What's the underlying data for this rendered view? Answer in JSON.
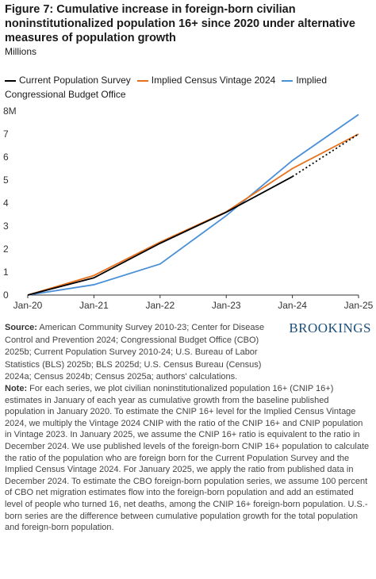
{
  "chart_data": {
    "type": "line",
    "title": "Figure 7: Cumulative increase in foreign-born civilian noninstitutionalized population 16+ since 2020 under alternative measures of population growth",
    "subtitle": "Millions",
    "categories": [
      "Jan-20",
      "Jan-21",
      "Jan-22",
      "Jan-23",
      "Jan-24",
      "Jan-25"
    ],
    "series": [
      {
        "name": "Current Population Survey",
        "color": "#000000",
        "values": [
          0,
          0.75,
          2.25,
          3.6,
          5.15,
          7.0
        ],
        "dotted_from_index": 4
      },
      {
        "name": "Implied Census Vintage 2024",
        "color": "#e8701a",
        "values": [
          0,
          0.85,
          2.3,
          3.62,
          5.5,
          7.0
        ]
      },
      {
        "name": "Implied Congressional Budget Office",
        "color": "#4a90d9",
        "values": [
          0,
          0.45,
          1.35,
          3.45,
          5.85,
          7.85
        ]
      }
    ],
    "ylim": [
      0,
      8
    ],
    "yticks": [
      0,
      1,
      2,
      3,
      4,
      5,
      6,
      7,
      {
        "value": 8,
        "label": "8M"
      }
    ],
    "grid": false
  },
  "source": {
    "label": "Source:",
    "text": "American Community Survey 2010-23; Center for Disease Control and Prevention 2024; Congressional Budget Office (CBO) 2025b; Current Population Survey 2010-24; U.S. Bureau of Labor Statistics (BLS) 2025b; BLS 2025d; U.S. Census Bureau (Census) 2024a; Census 2024b; Census 2025a; authors' calculations."
  },
  "brand": "BROOKINGS",
  "note": {
    "label": "Note:",
    "text": "For each series, we plot civilian noninstitutionalized population 16+ (CNIP 16+) estimates in January of each year as cumulative growth from the baseline published population in January 2020. To estimate the CNIP 16+ level for the Implied Census Vintage 2024, we multiply the Vintage 2024 CNIP with the ratio of the CNIP 16+ and CNIP population in Vintage 2023. In January 2025, we assume the CNIP 16+ ratio is equivalent to the ratio in December 2024. We use published levels of the foreign-born CNIP 16+ population to calculate the ratio of the population who are foreign born for the Current Population Survey and the Implied Census Vintage 2024. For January 2025, we apply the ratio from published data in December 2024. To estimate the CBO foreign-born population series, we assume 100 percent of CBO net migration estimates flow into the foreign-born population and add an estimated level of people who turned 16, net deaths, among the CNIP 16+ foreign-born population. U.S.-born series are the difference between cumulative population growth for the total population and foreign-born population."
  }
}
